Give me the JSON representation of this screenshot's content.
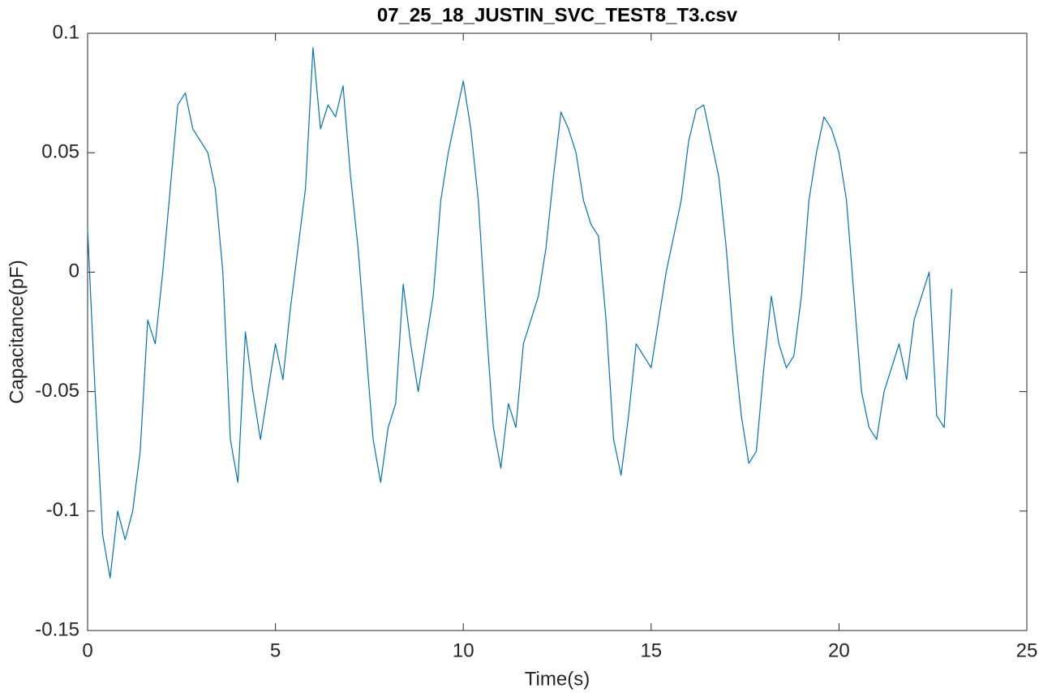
{
  "chart_data": {
    "type": "line",
    "title": "07_25_18_JUSTIN_SVC_TEST8_T3.csv",
    "x_label": "Time(s)",
    "y_label": "Capacitance(pF)",
    "x": [
      0,
      0.2,
      0.4,
      0.6,
      0.8,
      1.0,
      1.2,
      1.4,
      1.6,
      1.8,
      2.0,
      2.2,
      2.4,
      2.6,
      2.8,
      3.0,
      3.2,
      3.4,
      3.6,
      3.8,
      4.0,
      4.2,
      4.4,
      4.6,
      4.8,
      5.0,
      5.2,
      5.4,
      5.6,
      5.8,
      6.0,
      6.2,
      6.4,
      6.6,
      6.8,
      7.0,
      7.2,
      7.4,
      7.6,
      7.8,
      8.0,
      8.2,
      8.4,
      8.6,
      8.8,
      9.0,
      9.2,
      9.4,
      9.6,
      9.8,
      10.0,
      10.2,
      10.4,
      10.6,
      10.8,
      11.0,
      11.2,
      11.4,
      11.6,
      11.8,
      12.0,
      12.2,
      12.4,
      12.6,
      12.8,
      13.0,
      13.2,
      13.4,
      13.6,
      13.8,
      14.0,
      14.2,
      14.4,
      14.6,
      14.8,
      15.0,
      15.2,
      15.4,
      15.6,
      15.8,
      16.0,
      16.2,
      16.4,
      16.6,
      16.8,
      17.0,
      17.2,
      17.4,
      17.6,
      17.8,
      18.0,
      18.2,
      18.4,
      18.6,
      18.8,
      19.0,
      19.2,
      19.4,
      19.6,
      19.8,
      20.0,
      20.2,
      20.4,
      20.6,
      20.8,
      21.0,
      21.2,
      21.4,
      21.6,
      21.8,
      22.0,
      22.2,
      22.4,
      22.6,
      22.8,
      23.0
    ],
    "series": [
      {
        "color": "#0072bd",
        "values": [
          0.018,
          -0.05,
          -0.11,
          -0.128,
          -0.1,
          -0.112,
          -0.1,
          -0.075,
          -0.02,
          -0.03,
          0.0,
          0.035,
          0.07,
          0.075,
          0.06,
          0.055,
          0.05,
          0.035,
          0.0,
          -0.07,
          -0.088,
          -0.025,
          -0.05,
          -0.07,
          -0.05,
          -0.03,
          -0.045,
          -0.015,
          0.01,
          0.035,
          0.094,
          0.06,
          0.07,
          0.065,
          0.078,
          0.04,
          0.01,
          -0.03,
          -0.07,
          -0.088,
          -0.065,
          -0.055,
          -0.005,
          -0.03,
          -0.05,
          -0.03,
          -0.01,
          0.03,
          0.05,
          0.065,
          0.08,
          0.06,
          0.03,
          -0.02,
          -0.065,
          -0.082,
          -0.055,
          -0.065,
          -0.03,
          -0.02,
          -0.01,
          0.01,
          0.04,
          0.067,
          0.06,
          0.05,
          0.03,
          0.02,
          0.015,
          -0.02,
          -0.07,
          -0.085,
          -0.06,
          -0.03,
          -0.035,
          -0.04,
          -0.02,
          0.0,
          0.015,
          0.03,
          0.055,
          0.068,
          0.07,
          0.055,
          0.04,
          0.01,
          -0.03,
          -0.06,
          -0.08,
          -0.075,
          -0.04,
          -0.01,
          -0.03,
          -0.04,
          -0.035,
          -0.01,
          0.03,
          0.05,
          0.065,
          0.06,
          0.05,
          0.03,
          -0.01,
          -0.05,
          -0.065,
          -0.07,
          -0.05,
          -0.04,
          -0.03,
          -0.045,
          -0.02,
          -0.01,
          0.0,
          -0.06,
          -0.065,
          -0.007
        ]
      }
    ],
    "xlim": [
      0,
      25
    ],
    "xticks": [
      0,
      5,
      10,
      15,
      20,
      25
    ],
    "ylim": [
      -0.15,
      0.1
    ],
    "yticks": [
      -0.15,
      -0.1,
      -0.05,
      0,
      0.05,
      0.1
    ],
    "grid": false
  }
}
